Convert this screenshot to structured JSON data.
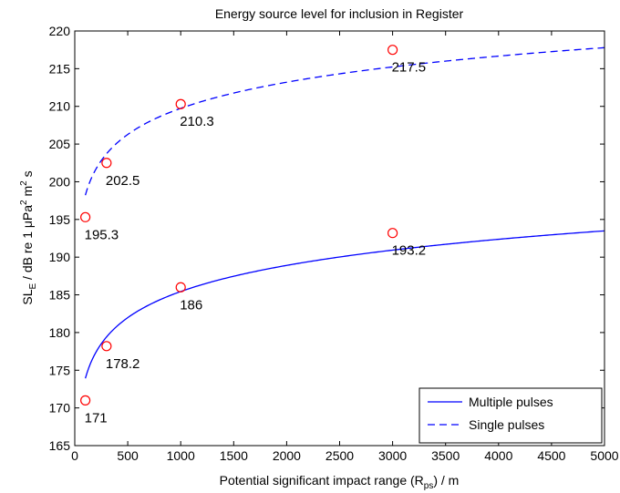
{
  "chart_data": {
    "type": "line",
    "title": "Energy source level for inclusion in Register",
    "xlabel": {
      "prefix": "Potential significant impact range (R",
      "sub": "ps",
      "suffix": ") / m"
    },
    "ylabel": {
      "p1": "SL",
      "sub": "E",
      "p2": " / dB re 1 μPa",
      "sup1": "2",
      "p3": " m",
      "sup2": "2",
      "p4": " s"
    },
    "xlim": [
      0,
      5000
    ],
    "ylim": [
      165,
      220
    ],
    "xticks": [
      0,
      500,
      1000,
      1500,
      2000,
      2500,
      3000,
      3500,
      4000,
      4500,
      5000
    ],
    "yticks": [
      165,
      170,
      175,
      180,
      185,
      190,
      195,
      200,
      205,
      210,
      215,
      220
    ],
    "grid": false,
    "legend_position": "bottom-right",
    "series": [
      {
        "name": "Multiple pulses",
        "style": "solid",
        "color": "#0000ff",
        "curve": {
          "a": 150.9,
          "b": 5,
          "range": [
            100,
            5000
          ]
        },
        "points": [
          {
            "x": 100,
            "y": 171,
            "label": "171"
          },
          {
            "x": 300,
            "y": 178.2,
            "label": "178.2"
          },
          {
            "x": 1000,
            "y": 186,
            "label": "186"
          },
          {
            "x": 3000,
            "y": 193.2,
            "label": "193.2"
          }
        ]
      },
      {
        "name": "Single pulses",
        "style": "dashed",
        "color": "#0000ff",
        "curve": {
          "a": 175.2,
          "b": 5,
          "range": [
            100,
            5000
          ]
        },
        "points": [
          {
            "x": 100,
            "y": 195.3,
            "label": "195.3"
          },
          {
            "x": 300,
            "y": 202.5,
            "label": "202.5"
          },
          {
            "x": 1000,
            "y": 210.3,
            "label": "210.3"
          },
          {
            "x": 3000,
            "y": 217.5,
            "label": "217.5"
          }
        ]
      }
    ],
    "marker_color": "#ff0000"
  }
}
